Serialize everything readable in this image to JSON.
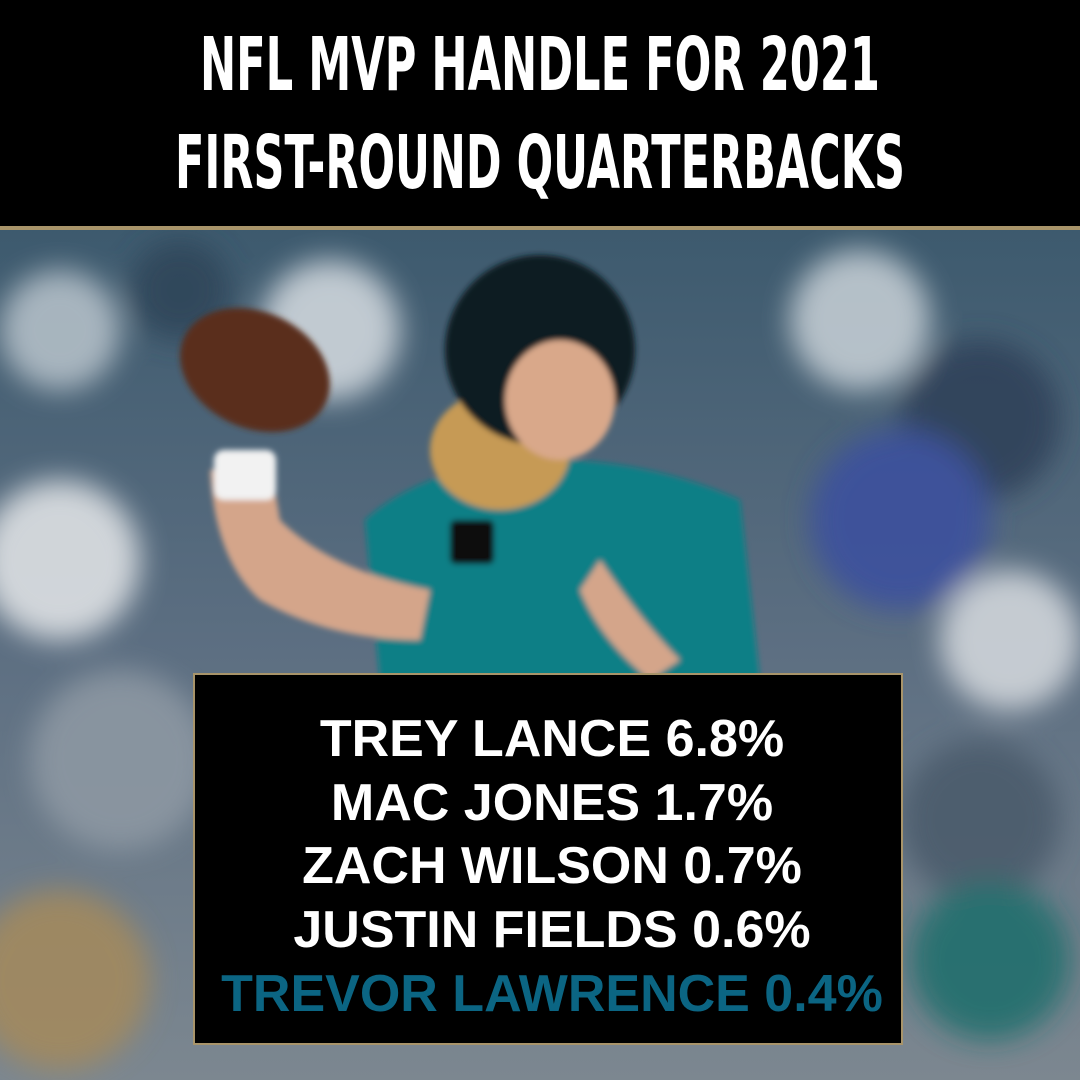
{
  "header": {
    "title_lines": [
      "NFL MVP HANDLE FOR 2021",
      "FIRST-ROUND QUARTERBACKS"
    ]
  },
  "list": {
    "items": [
      "TREY LANCE 6.8%",
      "MAC JONES 1.7%",
      "ZACH WILSON 0.7%",
      "JUSTIN FIELDS 0.6%",
      "TREVOR LAWRENCE 0.4%"
    ]
  }
}
